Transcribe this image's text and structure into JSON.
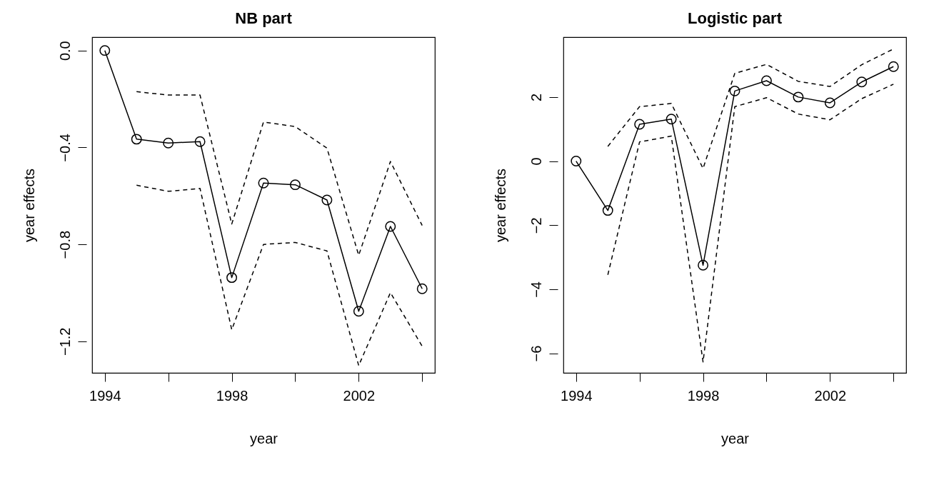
{
  "chart_data": [
    {
      "type": "line",
      "title": "NB part",
      "xlabel": "year",
      "ylabel": "year effects",
      "x": [
        1994,
        1995,
        1996,
        1997,
        1998,
        1999,
        2000,
        2001,
        2002,
        2003,
        2004
      ],
      "xlim": [
        1993.6,
        2004.4
      ],
      "xticks": [
        1994,
        {
          "value": 1996,
          "label": null
        },
        1998,
        {
          "value": 2000,
          "label": null
        },
        2002,
        {
          "value": 2004,
          "label": null
        }
      ],
      "ylim": [
        -1.33,
        0.055
      ],
      "yticks": [
        {
          "value": -1.2,
          "label": "−1.2"
        },
        {
          "value": -0.8,
          "label": "−0.8"
        },
        {
          "value": -0.4,
          "label": "−0.4"
        },
        {
          "value": 0,
          "label": "0.0"
        }
      ],
      "series": [
        {
          "color": "#000000",
          "marker": "circle",
          "line_style": "solid",
          "values": [
            0,
            -0.366,
            -0.382,
            -0.376,
            -0.937,
            -0.547,
            -0.554,
            -0.617,
            -1.076,
            -0.726,
            -0.983
          ]
        },
        {
          "color": "#000000",
          "marker": "none",
          "line_style": "dashed",
          "values": [
            null,
            -0.17,
            -0.184,
            -0.184,
            -0.716,
            -0.295,
            -0.314,
            -0.403,
            -0.845,
            -0.458,
            -0.722
          ]
        },
        {
          "color": "#000000",
          "marker": "none",
          "line_style": "dashed",
          "values": [
            null,
            -0.556,
            -0.581,
            -0.569,
            -1.152,
            -0.8,
            -0.792,
            -0.827,
            -1.3,
            -0.999,
            -1.22
          ]
        }
      ]
    },
    {
      "type": "line",
      "title": "Logistic  part",
      "xlabel": "year",
      "ylabel": "year effects",
      "x": [
        1994,
        1995,
        1996,
        1997,
        1998,
        1999,
        2000,
        2001,
        2002,
        2003,
        2004
      ],
      "xlim": [
        1993.6,
        2004.4
      ],
      "xticks": [
        1994,
        {
          "value": 1996,
          "label": null
        },
        1998,
        {
          "value": 2000,
          "label": null
        },
        2002,
        {
          "value": 2004,
          "label": null
        }
      ],
      "ylim": [
        -6.61,
        3.87
      ],
      "yticks": [
        {
          "value": -6,
          "label": "−6"
        },
        {
          "value": -4,
          "label": "−4"
        },
        {
          "value": -2,
          "label": "−2"
        },
        0,
        2
      ],
      "series": [
        {
          "color": "#000000",
          "marker": "circle",
          "line_style": "solid",
          "values": [
            0,
            -1.54,
            1.15,
            1.31,
            -3.25,
            2.19,
            2.51,
            2.0,
            1.82,
            2.47,
            2.95
          ]
        },
        {
          "color": "#000000",
          "marker": "none",
          "line_style": "dashed",
          "values": [
            null,
            0.46,
            1.7,
            1.8,
            -0.23,
            2.74,
            3.02,
            2.49,
            2.33,
            3.01,
            3.5
          ]
        },
        {
          "color": "#000000",
          "marker": "none",
          "line_style": "dashed",
          "values": [
            null,
            -3.55,
            0.6,
            0.78,
            -6.27,
            1.7,
            1.98,
            1.47,
            1.29,
            1.95,
            2.4
          ]
        }
      ]
    }
  ]
}
